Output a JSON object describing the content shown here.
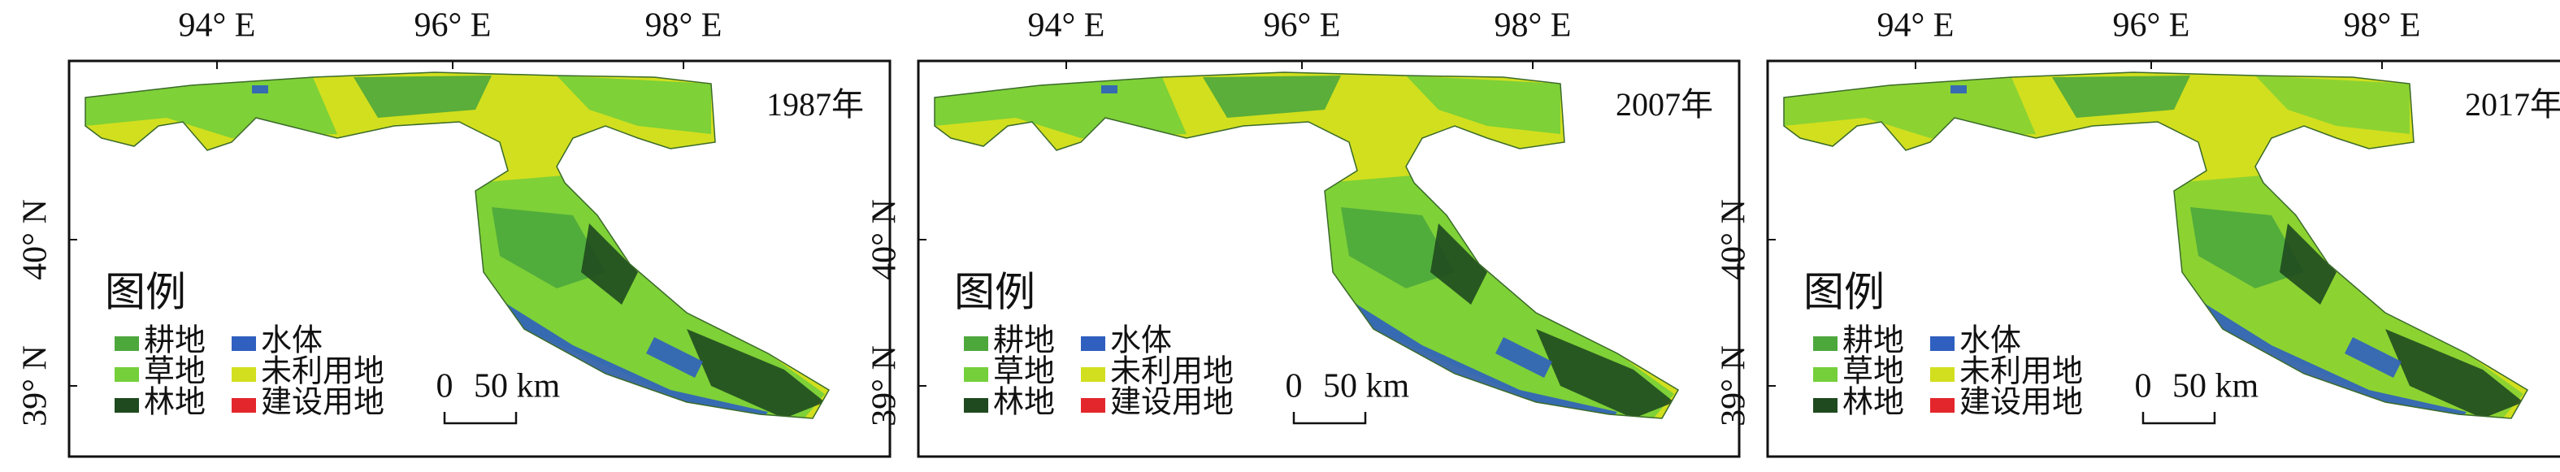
{
  "lon_labels": [
    "94° E",
    "96° E",
    "98° E"
  ],
  "lat_labels": [
    "40° N",
    "39° N"
  ],
  "legend": {
    "title": "图例",
    "items": [
      {
        "label": "耕地",
        "color": "#4da83c"
      },
      {
        "label": "草地",
        "color": "#74cf3a"
      },
      {
        "label": "林地",
        "color": "#1f4a1f"
      },
      {
        "label": "水体",
        "color": "#2f5fbf"
      },
      {
        "label": "未利用地",
        "color": "#d2df1e"
      },
      {
        "label": "建设用地",
        "color": "#e3262c"
      }
    ]
  },
  "scale_bar": {
    "start": "0",
    "label": "50 km"
  },
  "panels": [
    {
      "year": "1987年"
    },
    {
      "year": "2007年"
    },
    {
      "year": "2017年"
    }
  ]
}
